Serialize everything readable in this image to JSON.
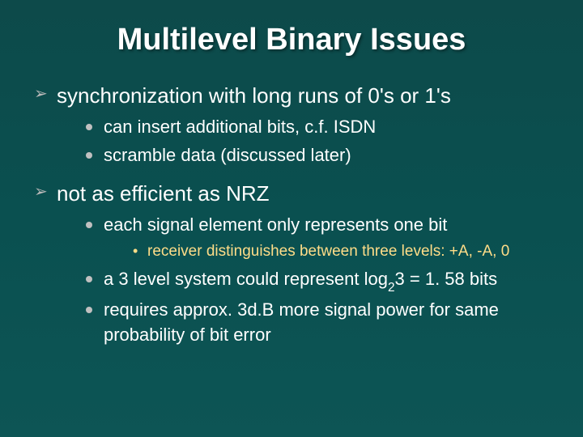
{
  "title": "Multilevel Binary Issues",
  "colors": {
    "background_top": "#0d4a4a",
    "background_bottom": "#0d5555",
    "title_color": "#ffffff",
    "body_color": "#ffffff",
    "arrow_color": "#b8b8b8",
    "dot_color": "#c0c0c0",
    "subsub_color": "#ffdd88"
  },
  "typography": {
    "title_fontsize": 38,
    "top_fontsize": 26,
    "sub_fontsize": 22,
    "subsub_fontsize": 19,
    "font_family": "Arial"
  },
  "bullets": {
    "b1": "synchronization with long runs of 0's or 1's",
    "b1_1": "can insert additional bits, c.f. ISDN",
    "b1_2": "scramble data (discussed later)",
    "b2": "not as efficient as NRZ",
    "b2_1": "each signal element only represents one bit",
    "b2_1_1": "receiver distinguishes between three levels: +A, -A, 0",
    "b2_2_pre": "a 3 level system could represent log",
    "b2_2_sub": "2",
    "b2_2_post": "3 = 1. 58 bits",
    "b2_3": "requires approx. 3d.B more signal power for same probability of bit error"
  }
}
